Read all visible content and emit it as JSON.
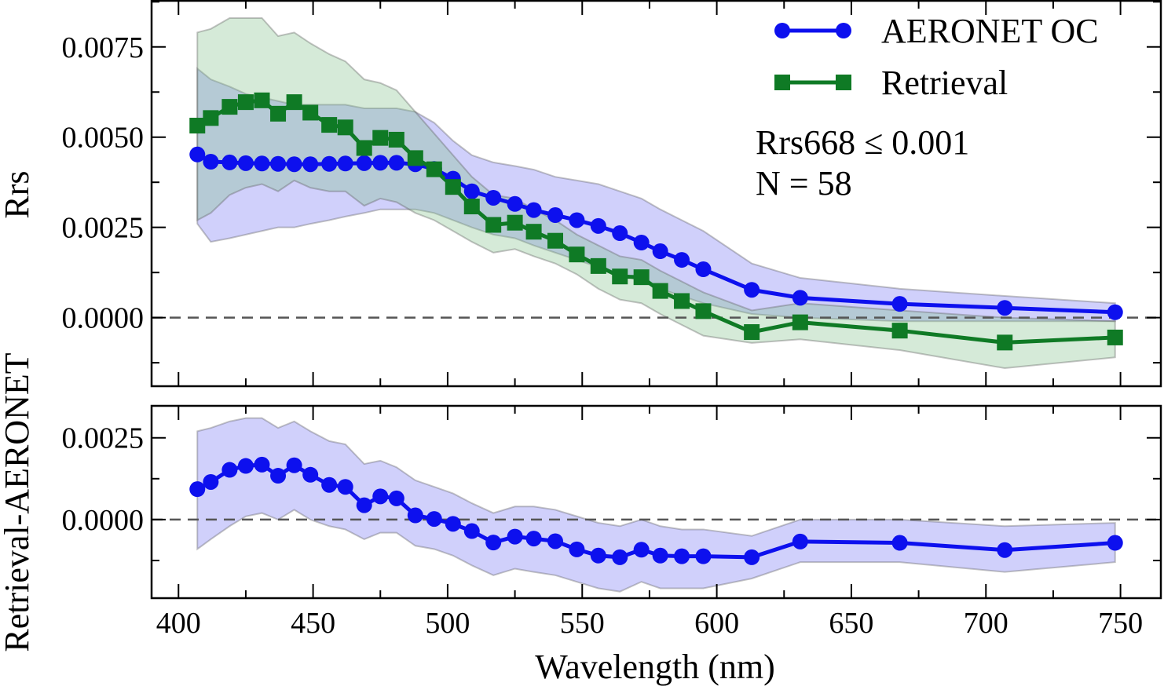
{
  "colors": {
    "aeronet": "#0d10ee",
    "retrieval": "#0f7a25",
    "aeronet_band": "#6f6ff2",
    "retrieval_band": "#7ec08a",
    "zero_line": "#555555"
  },
  "chart_data": [
    {
      "type": "line",
      "panel": "top",
      "xlabel": "",
      "ylabel": "Rrs",
      "xlim": [
        390,
        765
      ],
      "ylim": [
        -0.0019,
        0.0088
      ],
      "yticks": [
        0.0,
        0.0025,
        0.005,
        0.0075
      ],
      "ytick_labels": [
        "0.0000",
        "0.0025",
        "0.0050",
        "0.0075"
      ],
      "grid": false,
      "legend_position": "top-right",
      "annotation": [
        "Rrs668 ≤ 0.001",
        "N = 58"
      ],
      "x": [
        407,
        412,
        419,
        425,
        431,
        437,
        443,
        449,
        456,
        462,
        469,
        475,
        481,
        488,
        495,
        502,
        509,
        517,
        525,
        532,
        540,
        548,
        556,
        564,
        572,
        579,
        587,
        595,
        613,
        631,
        668,
        707,
        748
      ],
      "series": [
        {
          "name": "AERONET OC",
          "marker": "circle",
          "values": [
            0.00452,
            0.00432,
            0.0043,
            0.00428,
            0.00427,
            0.00426,
            0.00425,
            0.00425,
            0.00426,
            0.00427,
            0.00428,
            0.00429,
            0.00429,
            0.00425,
            0.00412,
            0.00385,
            0.0035,
            0.00332,
            0.00315,
            0.00298,
            0.00284,
            0.0027,
            0.00254,
            0.00234,
            0.00208,
            0.00184,
            0.0016,
            0.00134,
            0.00077,
            0.00055,
            0.00038,
            0.00027,
            0.00015
          ],
          "band_upper": [
            0.0069,
            0.0066,
            0.0064,
            0.0062,
            0.0061,
            0.006,
            0.0059,
            0.0059,
            0.0059,
            0.0059,
            0.0058,
            0.0058,
            0.0058,
            0.0057,
            0.0054,
            0.0049,
            0.0045,
            0.0043,
            0.0042,
            0.0041,
            0.0039,
            0.0038,
            0.0037,
            0.0035,
            0.0033,
            0.003,
            0.0027,
            0.0024,
            0.0015,
            0.0011,
            0.0008,
            0.0006,
            0.0004
          ],
          "band_lower": [
            0.0026,
            0.0021,
            0.0022,
            0.0023,
            0.0024,
            0.0025,
            0.0025,
            0.0026,
            0.0027,
            0.0028,
            0.0029,
            0.003,
            0.003,
            0.003,
            0.0029,
            0.0027,
            0.0025,
            0.0023,
            0.0022,
            0.002,
            0.0018,
            0.0016,
            0.0014,
            0.0012,
            0.001,
            0.0008,
            0.0006,
            0.0004,
            0.0001,
            0.0,
            -0.0001,
            -0.0001,
            -0.0001
          ]
        },
        {
          "name": "Retrieval",
          "marker": "square",
          "values": [
            0.00532,
            0.00553,
            0.00584,
            0.00597,
            0.00602,
            0.00565,
            0.00597,
            0.00568,
            0.00534,
            0.00527,
            0.0047,
            0.00498,
            0.00493,
            0.00442,
            0.00411,
            0.00362,
            0.00308,
            0.00257,
            0.00263,
            0.00238,
            0.00213,
            0.00175,
            0.00143,
            0.00114,
            0.00112,
            0.00074,
            0.00046,
            0.00018,
            -0.0004,
            -0.00013,
            -0.00036,
            -0.00069,
            -0.00055
          ],
          "band_upper": [
            0.0079,
            0.008,
            0.0083,
            0.0083,
            0.0083,
            0.0078,
            0.0079,
            0.0076,
            0.0073,
            0.0071,
            0.0066,
            0.0065,
            0.0063,
            0.0057,
            0.0051,
            0.0045,
            0.0039,
            0.0034,
            0.0033,
            0.003,
            0.0027,
            0.0023,
            0.002,
            0.0017,
            0.0016,
            0.0013,
            0.001,
            0.0007,
            0.0002,
            0.0004,
            0.0002,
            0.0,
            -0.0001
          ],
          "band_lower": [
            0.0027,
            0.0029,
            0.0034,
            0.0036,
            0.0037,
            0.0035,
            0.0038,
            0.0036,
            0.0035,
            0.0035,
            0.0031,
            0.0033,
            0.0032,
            0.0029,
            0.0027,
            0.0024,
            0.0021,
            0.0018,
            0.0019,
            0.0017,
            0.0015,
            0.0012,
            0.0008,
            0.0005,
            0.0004,
            0.0001,
            -0.0002,
            -0.0005,
            -0.0007,
            -0.0006,
            -0.0009,
            -0.0014,
            -0.0011
          ]
        }
      ]
    },
    {
      "type": "line",
      "panel": "bottom",
      "xlabel": "Wavelength (nm)",
      "ylabel": "Retrieval-AERONET",
      "xlim": [
        390,
        765
      ],
      "ylim": [
        -0.0024,
        0.0035
      ],
      "yticks": [
        0.0,
        0.0025
      ],
      "ytick_labels": [
        "0.0000",
        "0.0025"
      ],
      "xticks": [
        400,
        450,
        500,
        550,
        600,
        650,
        700,
        750
      ],
      "xtick_labels": [
        "400",
        "450",
        "500",
        "550",
        "600",
        "650",
        "700",
        "750"
      ],
      "grid": false,
      "x": [
        407,
        412,
        419,
        425,
        431,
        437,
        443,
        449,
        456,
        462,
        469,
        475,
        481,
        488,
        495,
        502,
        509,
        517,
        525,
        532,
        540,
        548,
        556,
        564,
        572,
        579,
        587,
        595,
        613,
        631,
        668,
        707,
        748
      ],
      "series": [
        {
          "marker": "circle",
          "values": [
            0.00093,
            0.00115,
            0.00152,
            0.00164,
            0.00168,
            0.00134,
            0.00166,
            0.00137,
            0.00106,
            0.001,
            0.00044,
            0.00071,
            0.00065,
            0.00013,
            2e-05,
            -0.00013,
            -0.00035,
            -0.0007,
            -0.00052,
            -0.00058,
            -0.00066,
            -0.00091,
            -0.0011,
            -0.00115,
            -0.00092,
            -0.0011,
            -0.00112,
            -0.00112,
            -0.00115,
            -0.00067,
            -0.00071,
            -0.00093,
            -0.00071
          ],
          "band_upper": [
            0.0027,
            0.0028,
            0.003,
            0.0031,
            0.0031,
            0.0028,
            0.003,
            0.0027,
            0.0024,
            0.0023,
            0.0017,
            0.0018,
            0.0016,
            0.0012,
            0.001,
            0.0008,
            0.0005,
            0.0002,
            0.0004,
            0.0004,
            0.0003,
            0.0001,
            -0.0001,
            -0.0002,
            0.0,
            -0.0002,
            -0.0003,
            -0.0003,
            -0.0005,
            0.0,
            0.0,
            -0.0002,
            -0.0001
          ],
          "band_lower": [
            -0.0009,
            -0.0006,
            -0.0002,
            0.0001,
            0.0002,
            0.0,
            0.0003,
            0.0,
            -0.0002,
            -0.0003,
            -0.0006,
            -0.0004,
            -0.0004,
            -0.0008,
            -0.0009,
            -0.0011,
            -0.0014,
            -0.0017,
            -0.0015,
            -0.0016,
            -0.0017,
            -0.0019,
            -0.0021,
            -0.0022,
            -0.0019,
            -0.0021,
            -0.0021,
            -0.0021,
            -0.0018,
            -0.0013,
            -0.0013,
            -0.0016,
            -0.0013
          ]
        }
      ]
    }
  ]
}
